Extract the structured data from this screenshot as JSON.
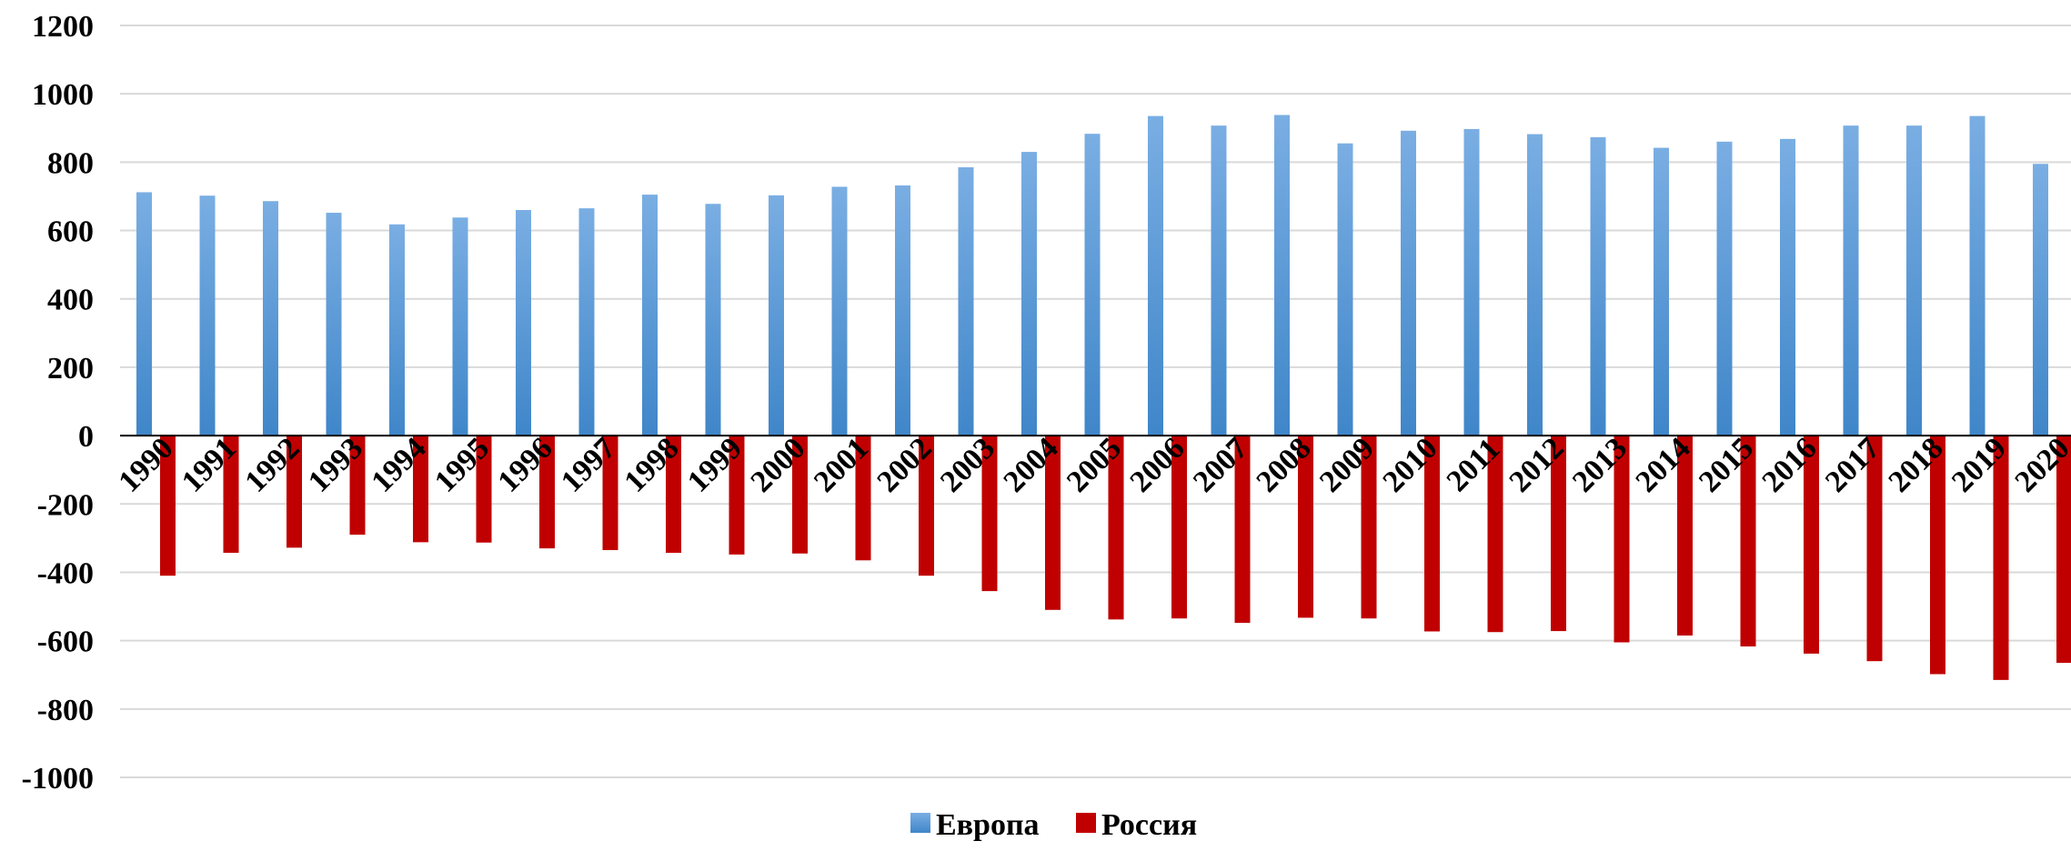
{
  "chart_data": {
    "type": "bar",
    "categories": [
      "1990",
      "1991",
      "1992",
      "1993",
      "1994",
      "1995",
      "1996",
      "1997",
      "1998",
      "1999",
      "2000",
      "2001",
      "2002",
      "2003",
      "2004",
      "2005",
      "2006",
      "2007",
      "2008",
      "2009",
      "2010",
      "2011",
      "2012",
      "2013",
      "2014",
      "2015",
      "2016",
      "2017",
      "2018",
      "2019",
      "2020"
    ],
    "series": [
      {
        "name": "Европа",
        "color": "#5b9bd5",
        "values": [
          712,
          702,
          686,
          652,
          618,
          638,
          660,
          665,
          705,
          678,
          703,
          728,
          732,
          785,
          830,
          883,
          935,
          907,
          938,
          855,
          892,
          897,
          882,
          873,
          842,
          860,
          868,
          907,
          907,
          935,
          795
        ]
      },
      {
        "name": "Россия",
        "color": "#c00000",
        "values": [
          -410,
          -343,
          -328,
          -290,
          -312,
          -313,
          -330,
          -335,
          -343,
          -348,
          -345,
          -365,
          -410,
          -455,
          -510,
          -538,
          -535,
          -548,
          -533,
          -535,
          -573,
          -575,
          -572,
          -605,
          -585,
          -617,
          -638,
          -660,
          -698,
          -715,
          -665
        ]
      }
    ],
    "yticks": [
      "1200",
      "1000",
      "800",
      "600",
      "400",
      "200",
      "0",
      "-200",
      "-400",
      "-600",
      "-800",
      "-1000"
    ],
    "ylim": [
      -1000,
      1200
    ],
    "grid": true,
    "legend_position": "bottom-center"
  }
}
